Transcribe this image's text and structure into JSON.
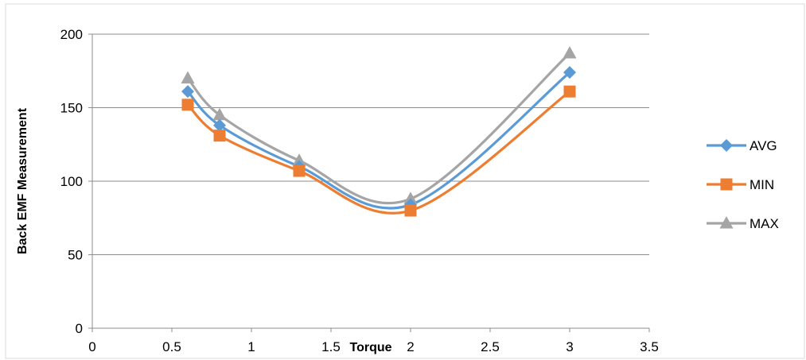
{
  "chart_data": {
    "type": "scatter",
    "title": "",
    "xlabel": "Torque",
    "ylabel": "Back EMF Measurement",
    "xlim": [
      0,
      3.5
    ],
    "ylim": [
      0,
      200
    ],
    "x_ticks": [
      "0",
      "0.5",
      "1",
      "1.5",
      "2",
      "2.5",
      "3",
      "3.5"
    ],
    "y_ticks": [
      "0",
      "50",
      "100",
      "150",
      "200"
    ],
    "grid": "horizontal",
    "smooth_lines": true,
    "legend_position": "right",
    "x": [
      0.6,
      0.8,
      1.3,
      2,
      3
    ],
    "series": [
      {
        "name": "AVG",
        "color": "#5B9BD5",
        "marker": "diamond",
        "values": [
          161,
          138,
          110,
          84,
          174
        ]
      },
      {
        "name": "MIN",
        "color": "#ED7D31",
        "marker": "square",
        "values": [
          152,
          131,
          107,
          80,
          161
        ]
      },
      {
        "name": "MAX",
        "color": "#A5A5A5",
        "marker": "triangle",
        "values": [
          170,
          145,
          114,
          88,
          187
        ]
      }
    ]
  }
}
